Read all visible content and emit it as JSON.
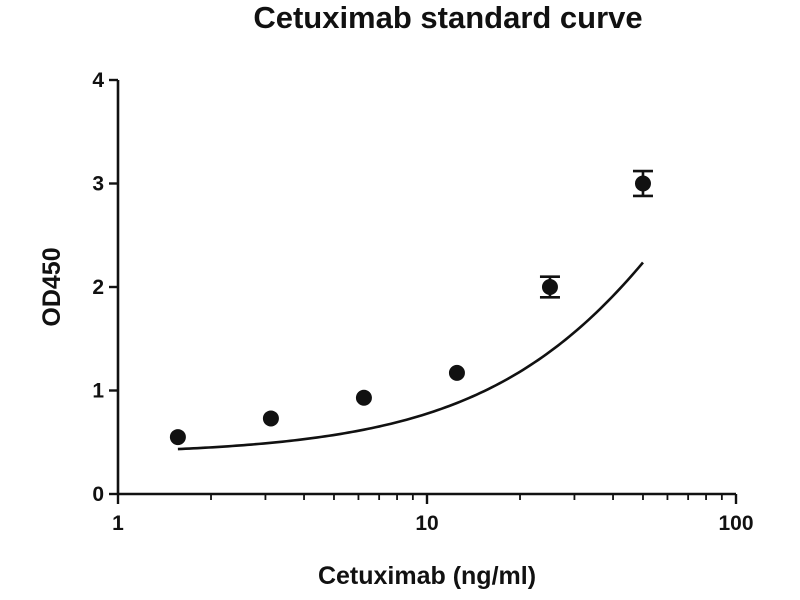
{
  "chart_data": {
    "type": "scatter",
    "title": "Cetuximab standard curve",
    "xlabel": "Cetuximab (ng/ml)",
    "ylabel": "OD450",
    "x_scale": "log",
    "xlim": [
      1,
      100
    ],
    "ylim": [
      0,
      4
    ],
    "x_ticks": [
      1,
      10,
      100
    ],
    "x_tick_labels": [
      "1",
      "10",
      "100"
    ],
    "y_ticks": [
      0,
      1,
      2,
      3,
      4
    ],
    "y_tick_labels": [
      "0",
      "1",
      "2",
      "3",
      "4"
    ],
    "grid": false,
    "legend": "none",
    "points": [
      {
        "x": 1.5625,
        "y": 0.55,
        "error": 0.03
      },
      {
        "x": 3.125,
        "y": 0.73,
        "error": 0.02
      },
      {
        "x": 6.25,
        "y": 0.93,
        "error": 0.02
      },
      {
        "x": 12.5,
        "y": 1.17,
        "error": 0.02
      },
      {
        "x": 25,
        "y": 2.0,
        "error": 0.1
      },
      {
        "x": 50,
        "y": 3.0,
        "error": 0.12
      }
    ],
    "fit_curve": {
      "type": "4PL",
      "bottom": 0.38,
      "top": 8.0,
      "ec50": 140,
      "hill": 1.1,
      "x_range": [
        1.5625,
        50
      ]
    },
    "colors": {
      "ink": "#111111",
      "background": "#ffffff"
    }
  }
}
